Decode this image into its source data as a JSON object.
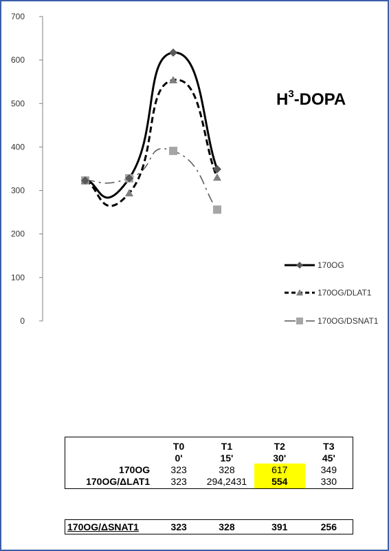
{
  "chart_data": {
    "type": "line",
    "title_main": "H",
    "title_sup": "3",
    "title_rest": "-DOPA",
    "ylim": [
      0,
      700
    ],
    "yticks": [
      "0",
      "100",
      "200",
      "300",
      "400",
      "500",
      "600",
      "700"
    ],
    "x": [
      0,
      1,
      2,
      3
    ],
    "series": [
      {
        "name": "170OG",
        "values": [
          323,
          328,
          617,
          349
        ],
        "color": "#000000",
        "marker": "diamond",
        "marker_color": "#595959",
        "dash": "solid"
      },
      {
        "name": "170OG/DLAT1",
        "values": [
          323,
          294,
          554,
          330
        ],
        "color": "#000000",
        "marker": "triangle",
        "marker_color": "#7f7f7f",
        "dash": "dashed"
      },
      {
        "name": "170OG/DSNAT1",
        "values": [
          323,
          328,
          391,
          256
        ],
        "color": "#000000",
        "marker": "square",
        "marker_color": "#a6a6a6",
        "dash": "dashdot"
      }
    ],
    "legend_position": "right"
  },
  "table": {
    "headers_row1": [
      "T0",
      "T1",
      "T2",
      "T3"
    ],
    "headers_row2": [
      "0'",
      "15'",
      "30'",
      "45'"
    ],
    "rows": [
      {
        "label": "170OG",
        "values": [
          "323",
          "328",
          "617",
          "349"
        ]
      },
      {
        "label": "170OG/ΔLAT1",
        "values": [
          "323",
          "294,2431",
          "554",
          "330"
        ]
      }
    ],
    "highlight_color": "#ffff00"
  },
  "table2": {
    "label": "170OG/ΔSNAT1",
    "values": [
      "323",
      "328",
      "391",
      "256"
    ]
  }
}
